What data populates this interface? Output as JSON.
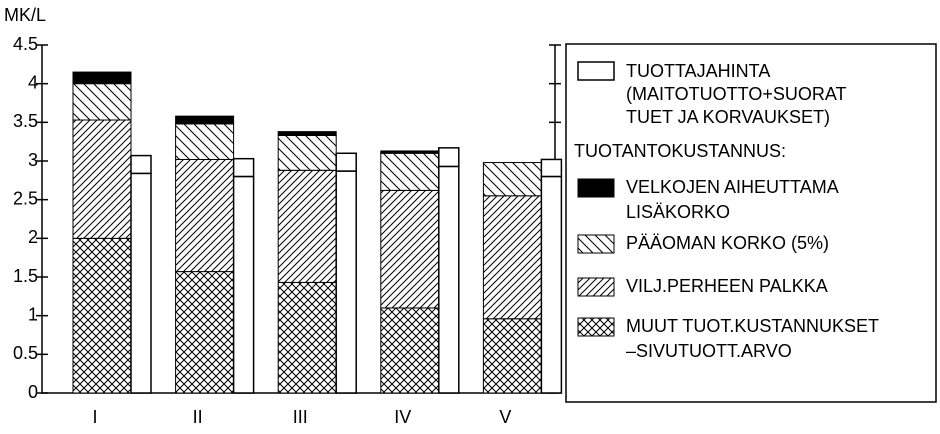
{
  "chart_data": {
    "type": "stacked_bar",
    "y_label": "MK/L",
    "categories": [
      "I",
      "II",
      "III",
      "IV",
      "V"
    ],
    "ylim": [
      0,
      4.5
    ],
    "yticks": [
      0,
      0.5,
      1,
      1.5,
      2,
      2.5,
      3,
      3.5,
      4,
      4.5
    ],
    "price": {
      "name": [
        "TUOTTAJAHINTA",
        "(MAITOTUOTTO+SUORAT",
        "TUET JA KORVAUKSET)"
      ],
      "color": "#ffffff",
      "values": [
        2.84,
        2.8,
        2.87,
        2.93,
        2.8
      ],
      "values_upper": [
        0.23,
        0.23,
        0.23,
        0.24,
        0.22
      ]
    },
    "cost_heading": "TUOTANTOKUSTANNUS:",
    "series": [
      {
        "name": [
          "MUUT TUOT.KUSTANNUKSET",
          "–SIVUTUOTT.ARVO"
        ],
        "color": "#000000",
        "pattern": "crosshatch",
        "values": [
          2.0,
          1.57,
          1.43,
          1.1,
          0.96
        ]
      },
      {
        "name": [
          "VILJ.PERHEEN PALKKA"
        ],
        "color": "#000000",
        "pattern": "forward",
        "values": [
          1.53,
          1.45,
          1.45,
          1.52,
          1.59
        ]
      },
      {
        "name": [
          "PÄÄOMAN KORKO (5%)"
        ],
        "color": "#000000",
        "pattern": "backward",
        "values": [
          0.47,
          0.46,
          0.45,
          0.48,
          0.43
        ]
      },
      {
        "name": [
          "VELKOJEN  AIHEUTTAMA",
          "LISÄKORKO"
        ],
        "color": "#000000",
        "pattern": "solid",
        "values": [
          0.15,
          0.1,
          0.05,
          0.03,
          0
        ]
      }
    ]
  }
}
